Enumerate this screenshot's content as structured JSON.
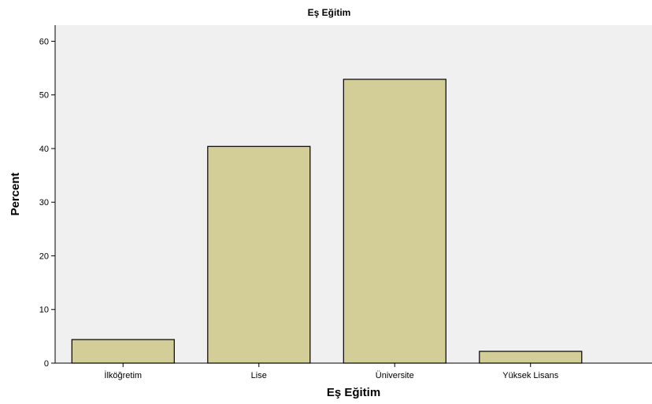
{
  "chart_data": {
    "type": "bar",
    "title": "Eş Eğitim",
    "xlabel": "Eş Eğitim",
    "ylabel": "Percent",
    "categories": [
      "İlköğretim",
      "Lise",
      "Üniversite",
      "Yüksek Lisans"
    ],
    "values": [
      4.4,
      40.4,
      52.9,
      2.2
    ],
    "ylim": [
      0,
      63
    ],
    "yticks": [
      0,
      10,
      20,
      30,
      40,
      50,
      60
    ],
    "grid": false,
    "legend": "none",
    "colors": {
      "plot_background": "#f0f0f0",
      "bar_fill": "#d3ce98",
      "bar_stroke": "#000000"
    }
  }
}
